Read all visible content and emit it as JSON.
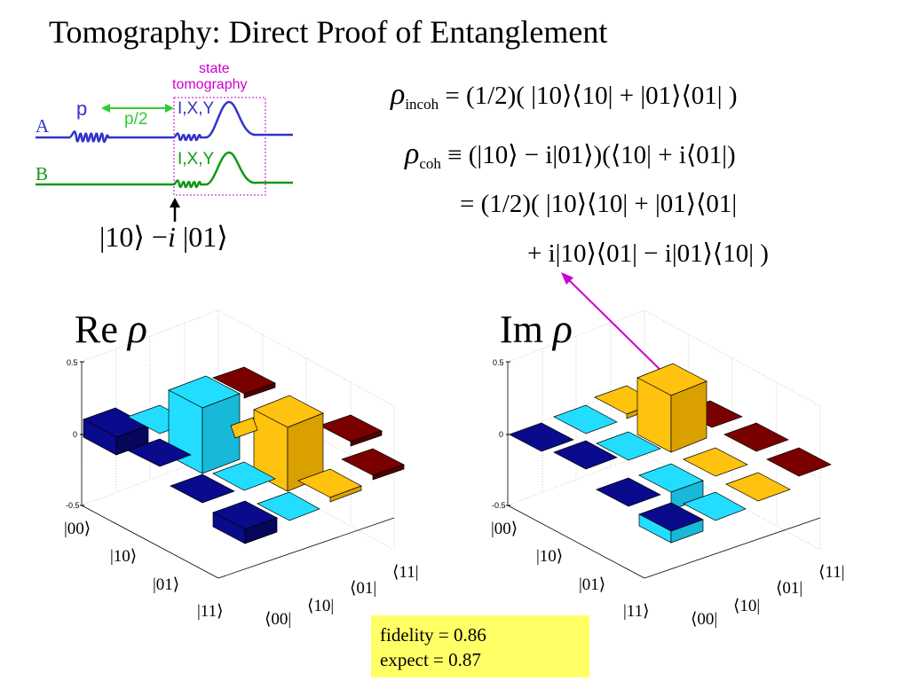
{
  "title": "Tomography: Direct Proof of Entanglement",
  "circuit": {
    "qubit_a": "A",
    "qubit_b": "B",
    "pulse_p": "p",
    "pulse_p_half": "p/2",
    "state_tomography": [
      "state",
      "tomography"
    ],
    "tomo_a": "I,X,Y",
    "tomo_b": "I,X,Y",
    "state_ket1": "|10⟩",
    "state_minus": "−",
    "state_i": "i",
    "state_ket2": "|01⟩"
  },
  "equations": {
    "incoh_sub": "incoh",
    "incoh_rhs": "= (1/2)( |10⟩⟨10|  +  |01⟩⟨01| )",
    "coh_sub": "coh",
    "coh_rhs": "≡ (|10⟩ − i|01⟩)(⟨10| + i⟨01|)",
    "coh_line2": "= (1/2)( |10⟩⟨10|  +  |01⟩⟨01|",
    "coh_line3": "+ i|10⟩⟨01| − i|01⟩⟨10| )",
    "rho_symbol": "ρ"
  },
  "panels": {
    "real": {
      "label": "Re",
      "symbol": "ρ"
    },
    "imag": {
      "label": "Im",
      "symbol": "ρ"
    },
    "z_ticks": [
      "0.5",
      "0",
      "-0.5"
    ],
    "row_labels": [
      "|00⟩",
      "|10⟩",
      "|01⟩",
      "|11⟩"
    ],
    "col_labels": [
      "⟨00|",
      "⟨10|",
      "⟨01|",
      "⟨11|"
    ]
  },
  "stats": {
    "fidelity": "fidelity = 0.86",
    "expect": "expect = 0.87"
  },
  "colors": {
    "navy": "#0a0a8c",
    "cyan": "#22ddff",
    "gold": "#ffc20e",
    "maroon": "#7a0000",
    "pulse_a": "#3333cc",
    "pulse_b": "#119911",
    "arrow_green": "#33cc33",
    "tomography_magenta": "#cc00cc",
    "box_yellow": "#ffff66"
  }
}
